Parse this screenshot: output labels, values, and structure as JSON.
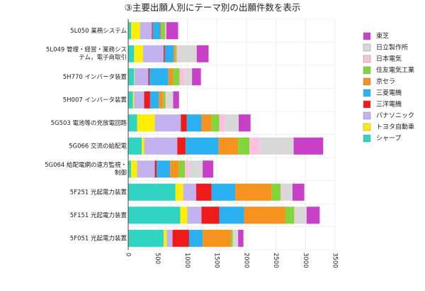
{
  "chart_data": {
    "type": "bar",
    "orientation": "horizontal",
    "stacked": true,
    "title": "③主要出願人別にテーマ別の出願件数を表示",
    "xlabel": "",
    "ylabel": "",
    "xlim": [
      0,
      3500
    ],
    "xticks": [
      0,
      500,
      1000,
      1500,
      2000,
      2500,
      3000,
      3500
    ],
    "grid": true,
    "legend_position": "right",
    "categories": [
      "5L050 業務システム",
      "5L049 管理・経営・業務シス\nテム，電子商取引",
      "5H770 インバータ装置",
      "5H007 インバータ装置",
      "5G503 電池等の充放電回路",
      "5G066 交流の給配電",
      "5G064 給配電網の遠方監視・\n制御",
      "5F251 光起電力装置",
      "5F151 光起電力装置",
      "5F051 光起電力装置"
    ],
    "series": [
      {
        "name": "シャープ",
        "color": "#2fd5c2",
        "values": [
          50,
          100,
          100,
          80,
          150,
          230,
          50,
          800,
          880,
          600
        ]
      },
      {
        "name": "トヨタ自動車",
        "color": "#ffee00",
        "values": [
          150,
          150,
          10,
          20,
          300,
          40,
          100,
          130,
          120,
          50
        ]
      },
      {
        "name": "パナソニック",
        "color": "#c2b2ef",
        "values": [
          200,
          350,
          230,
          170,
          440,
          560,
          300,
          220,
          240,
          100
        ]
      },
      {
        "name": "三洋電機",
        "color": "#ef1b1b",
        "values": [
          15,
          20,
          20,
          100,
          100,
          140,
          30,
          260,
          300,
          280
        ]
      },
      {
        "name": "三菱電機",
        "color": "#2bb0f2",
        "values": [
          130,
          150,
          320,
          150,
          250,
          560,
          230,
          400,
          420,
          230
        ]
      },
      {
        "name": "京セラ",
        "color": "#f6921e",
        "values": [
          20,
          30,
          80,
          70,
          170,
          330,
          150,
          620,
          700,
          480
        ]
      },
      {
        "name": "住友電気工業",
        "color": "#80d63a",
        "values": [
          60,
          20,
          110,
          40,
          130,
          190,
          100,
          150,
          150,
          30
        ]
      },
      {
        "name": "日本電気",
        "color": "#ffc0de",
        "values": [
          20,
          40,
          80,
          20,
          100,
          170,
          70,
          30,
          20,
          10
        ]
      },
      {
        "name": "日立製作所",
        "color": "#d8d8d8",
        "values": [
          0,
          300,
          130,
          110,
          230,
          580,
          230,
          170,
          190,
          80
        ]
      },
      {
        "name": "東芝",
        "color": "#c83fc8",
        "values": [
          200,
          200,
          150,
          100,
          200,
          500,
          180,
          200,
          220,
          90
        ]
      }
    ]
  }
}
